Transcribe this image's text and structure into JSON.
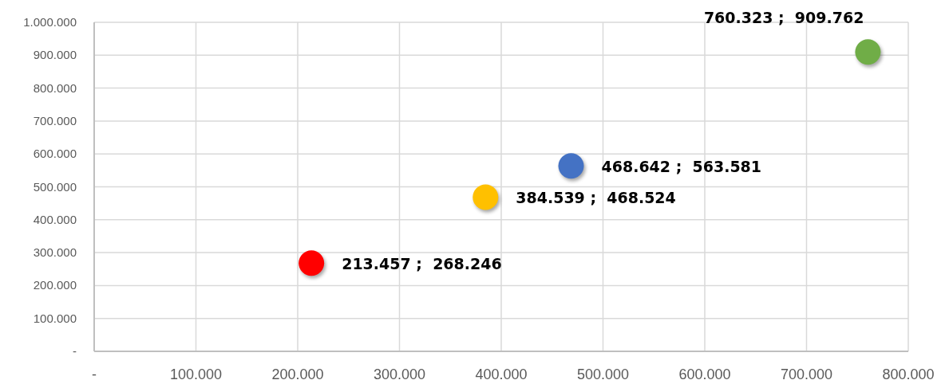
{
  "chart_data": {
    "type": "scatter",
    "x": [
      213457,
      384539,
      468642,
      760323
    ],
    "values": [
      268246,
      468524,
      563581,
      909762
    ],
    "colors": [
      "#ff0000",
      "#ffc000",
      "#4472c4",
      "#70ad47"
    ],
    "value_labels": [
      "213.457 ;  268.246",
      "384.539 ;  468.524",
      "468.642 ;  563.581",
      "760.323 ;  909.762"
    ],
    "xlim": [
      0,
      800000
    ],
    "ylim": [
      0,
      1000000
    ],
    "xticks": [
      {
        "value": 0,
        "label": "-"
      },
      {
        "value": 100000,
        "label": "100.000"
      },
      {
        "value": 200000,
        "label": "200.000"
      },
      {
        "value": 300000,
        "label": "300.000"
      },
      {
        "value": 400000,
        "label": "400.000"
      },
      {
        "value": 500000,
        "label": "500.000"
      },
      {
        "value": 600000,
        "label": "600.000"
      },
      {
        "value": 700000,
        "label": "700.000"
      },
      {
        "value": 800000,
        "label": "800.000"
      }
    ],
    "yticks": [
      {
        "value": 0,
        "label": "-"
      },
      {
        "value": 100000,
        "label": "100.000"
      },
      {
        "value": 200000,
        "label": "200.000"
      },
      {
        "value": 300000,
        "label": "300.000"
      },
      {
        "value": 400000,
        "label": "400.000"
      },
      {
        "value": 500000,
        "label": "500.000"
      },
      {
        "value": 600000,
        "label": "600.000"
      },
      {
        "value": 700000,
        "label": "700.000"
      },
      {
        "value": 800000,
        "label": "800.000"
      },
      {
        "value": 900000,
        "label": "900.000"
      },
      {
        "value": 1000000,
        "label": "1.000.000"
      }
    ],
    "grid": true,
    "marker": "circle"
  }
}
